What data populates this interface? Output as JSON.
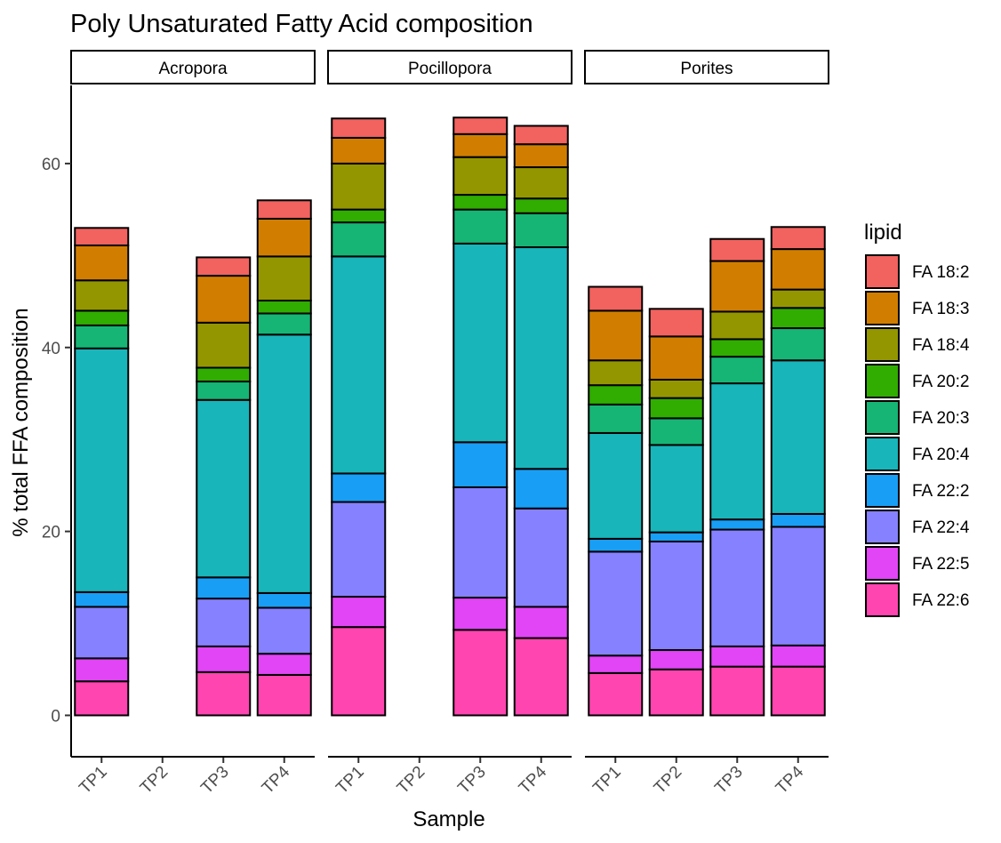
{
  "chart_data": {
    "type": "bar",
    "stacked": true,
    "title": "Poly Unsaturated Fatty Acid composition",
    "xlabel": "Sample",
    "ylabel": "% total FFA composition",
    "ylim": [
      -4.5,
      68.5
    ],
    "yticks": [
      0,
      20,
      40,
      60
    ],
    "categories": [
      "TP1",
      "TP2",
      "TP3",
      "TP4"
    ],
    "legend": {
      "title": "lipid",
      "position": "right"
    },
    "grid": false,
    "series": [
      {
        "name": "FA 22:6",
        "color": "#FF45B0"
      },
      {
        "name": "FA 22:5",
        "color": "#E145F5"
      },
      {
        "name": "FA 22:4",
        "color": "#8681FF"
      },
      {
        "name": "FA 22:2",
        "color": "#199EF5"
      },
      {
        "name": "FA 20:4",
        "color": "#18B5BA"
      },
      {
        "name": "FA 20:3",
        "color": "#16B575"
      },
      {
        "name": "FA 20:2",
        "color": "#30AD00"
      },
      {
        "name": "FA 18:4",
        "color": "#949600"
      },
      {
        "name": "FA 18:3",
        "color": "#D17E00"
      },
      {
        "name": "FA 18:2",
        "color": "#F2625F"
      }
    ],
    "panels": [
      {
        "name": "Acropora",
        "bars": [
          {
            "sample": "TP1",
            "values": [
              3.7,
              2.5,
              5.6,
              1.6,
              26.5,
              2.5,
              1.6,
              3.3,
              3.8,
              1.9
            ]
          },
          {
            "sample": "TP2",
            "values": null
          },
          {
            "sample": "TP3",
            "values": [
              4.7,
              2.8,
              5.2,
              2.3,
              19.3,
              2.0,
              1.5,
              4.9,
              5.1,
              2.0
            ]
          },
          {
            "sample": "TP4",
            "values": [
              4.4,
              2.3,
              5.0,
              1.6,
              28.1,
              2.3,
              1.4,
              4.8,
              4.1,
              2.0
            ]
          }
        ]
      },
      {
        "name": "Pocillopora",
        "bars": [
          {
            "sample": "TP1",
            "values": [
              9.6,
              3.3,
              10.3,
              3.1,
              23.6,
              3.7,
              1.4,
              5.0,
              2.8,
              2.1
            ]
          },
          {
            "sample": "TP2",
            "values": null
          },
          {
            "sample": "TP3",
            "values": [
              9.3,
              3.5,
              12.0,
              4.9,
              21.6,
              3.7,
              1.6,
              4.1,
              2.5,
              1.8
            ]
          },
          {
            "sample": "TP4",
            "values": [
              8.4,
              3.4,
              10.7,
              4.3,
              24.1,
              3.7,
              1.6,
              3.4,
              2.5,
              2.0
            ]
          }
        ]
      },
      {
        "name": "Porites",
        "bars": [
          {
            "sample": "TP1",
            "values": [
              4.6,
              1.9,
              11.3,
              1.4,
              11.5,
              3.1,
              2.1,
              2.7,
              5.4,
              2.6
            ]
          },
          {
            "sample": "TP2",
            "values": [
              5.0,
              2.1,
              11.8,
              1.0,
              9.5,
              2.9,
              2.2,
              2.0,
              4.7,
              3.0
            ]
          },
          {
            "sample": "TP3",
            "values": [
              5.3,
              2.2,
              12.7,
              1.1,
              14.8,
              2.9,
              1.9,
              3.0,
              5.5,
              2.4
            ]
          },
          {
            "sample": "TP4",
            "values": [
              5.3,
              2.3,
              12.9,
              1.4,
              16.7,
              3.5,
              2.2,
              2.0,
              4.4,
              2.4
            ]
          }
        ]
      }
    ]
  }
}
